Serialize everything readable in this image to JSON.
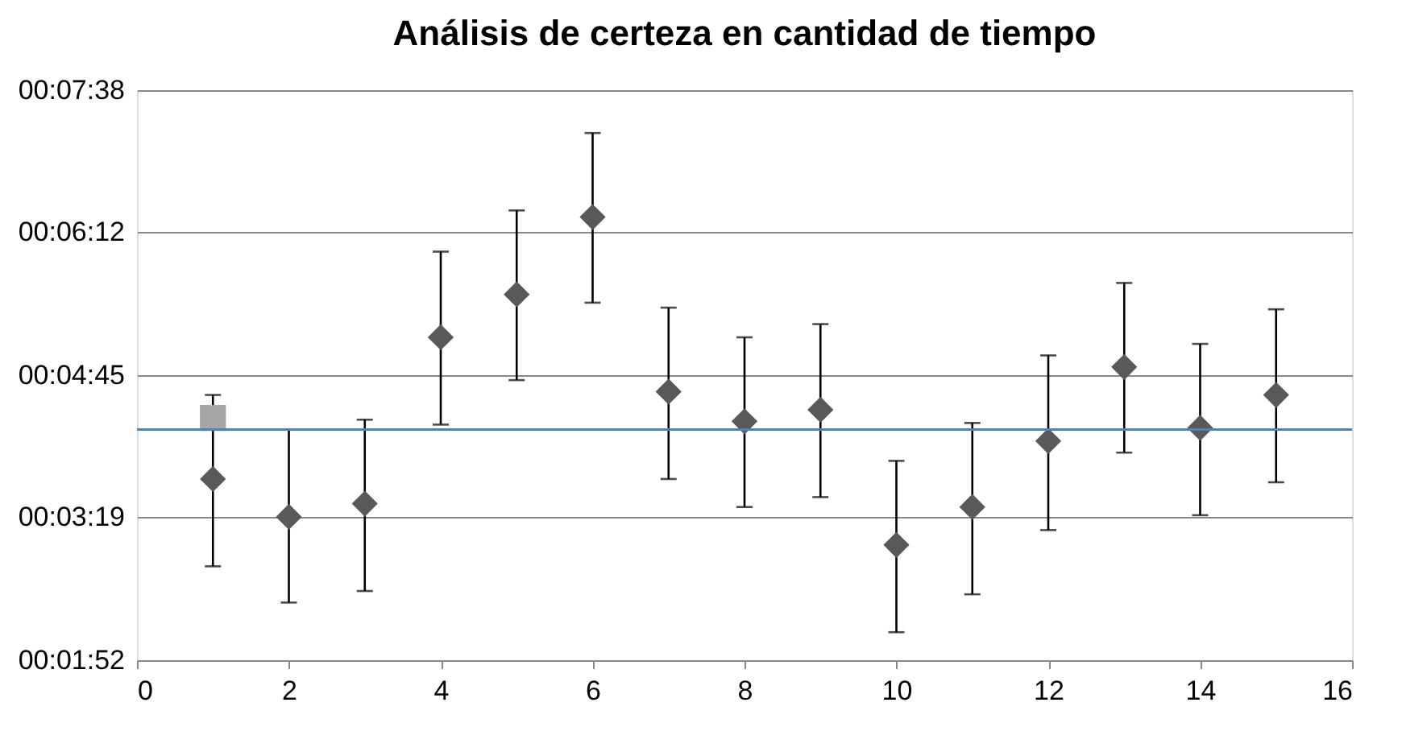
{
  "chart_data": {
    "type": "scatter",
    "title": "Análisis de  certeza en cantidad de tiempo",
    "x": [
      1,
      2,
      3,
      4,
      5,
      6,
      7,
      8,
      9,
      10,
      11,
      12,
      13,
      14,
      15
    ],
    "series": [
      {
        "color": "#595959",
        "marker": "diamond",
        "values": [
          222,
          199,
          207,
          308,
          334,
          381,
          275,
          257,
          264,
          182,
          205,
          245,
          290,
          253,
          273
        ],
        "errors": [
          [
            169,
            273
          ],
          [
            147,
            252
          ],
          [
            154,
            258
          ],
          [
            255,
            360
          ],
          [
            282,
            385
          ],
          [
            329,
            432
          ],
          [
            222,
            326
          ],
          [
            205,
            308
          ],
          [
            211,
            316
          ],
          [
            129,
            233
          ],
          [
            152,
            256
          ],
          [
            191,
            297
          ],
          [
            238,
            341
          ],
          [
            200,
            304
          ],
          [
            220,
            325
          ]
        ]
      },
      {
        "color": "#a6a6a6",
        "marker": "square",
        "x": [
          1
        ],
        "values": [
          259
        ]
      }
    ],
    "ref_lines": [
      {
        "axis": "y",
        "value": 252,
        "color": "#4f81bd"
      }
    ],
    "xlim": [
      0,
      16
    ],
    "xticks": [
      0,
      2,
      4,
      6,
      8,
      10,
      12,
      14,
      16
    ],
    "ylim": [
      112,
      458
    ],
    "yticks": [
      {
        "value": 112,
        "label": "00:01:52"
      },
      {
        "value": 199,
        "label": "00:03:19"
      },
      {
        "value": 285,
        "label": "00:04:45"
      },
      {
        "value": 372,
        "label": "00:06:12"
      },
      {
        "value": 458,
        "label": "00:07:38"
      }
    ],
    "grid": "y"
  }
}
